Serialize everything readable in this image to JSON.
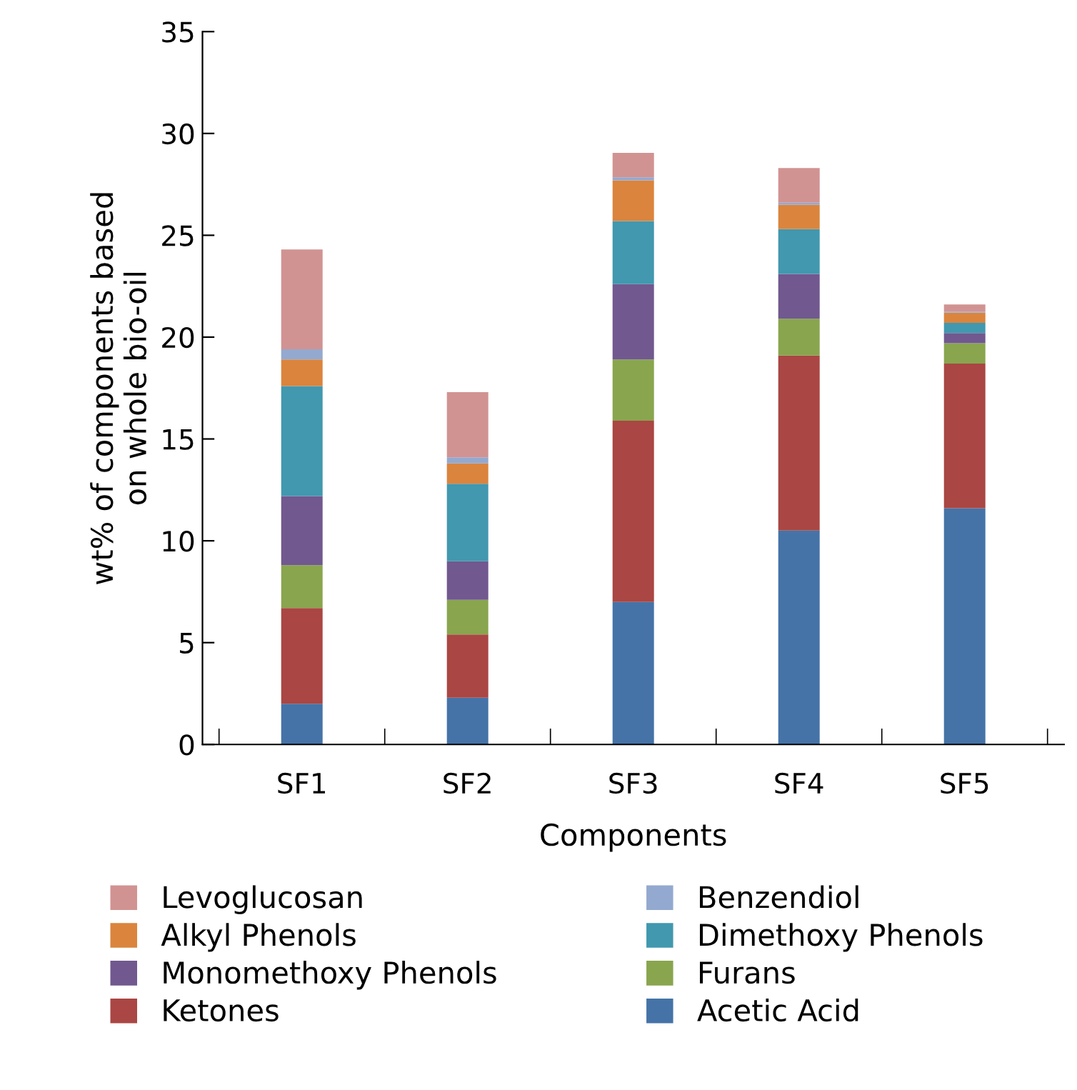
{
  "chart_data": {
    "type": "bar",
    "stacked": true,
    "xlabel": "Components",
    "ylabel": "wt% of components based\non whole bio-oil",
    "categories": [
      "SF1",
      "SF2",
      "SF3",
      "SF4",
      "SF5"
    ],
    "ylim": [
      0,
      35
    ],
    "yticks": [
      0,
      5,
      10,
      15,
      20,
      25,
      30,
      35
    ],
    "grid": false,
    "legend": "bottom",
    "series": [
      {
        "name": "Acetic Acid",
        "color": "#4573a7",
        "values": [
          2.0,
          2.3,
          7.0,
          10.5,
          11.6
        ]
      },
      {
        "name": "Ketones",
        "color": "#aa4643",
        "values": [
          4.7,
          3.1,
          8.9,
          8.6,
          7.1
        ]
      },
      {
        "name": "Furans",
        "color": "#89a54e",
        "values": [
          2.1,
          1.7,
          3.0,
          1.8,
          1.0
        ]
      },
      {
        "name": "Monomethoxy Phenols",
        "color": "#71588f",
        "values": [
          3.4,
          1.9,
          3.7,
          2.2,
          0.5
        ]
      },
      {
        "name": "Dimethoxy Phenols",
        "color": "#4198af",
        "values": [
          5.4,
          3.8,
          3.1,
          2.2,
          0.5
        ]
      },
      {
        "name": "Alkyl Phenols",
        "color": "#db843d",
        "values": [
          1.3,
          1.0,
          2.0,
          1.2,
          0.5
        ]
      },
      {
        "name": "Benzendiol",
        "color": "#93a9cf",
        "values": [
          0.5,
          0.3,
          0.15,
          0.1,
          0.05
        ]
      },
      {
        "name": "Levoglucosan",
        "color": "#d19392",
        "values": [
          4.9,
          3.2,
          1.2,
          1.7,
          0.35
        ]
      }
    ]
  }
}
